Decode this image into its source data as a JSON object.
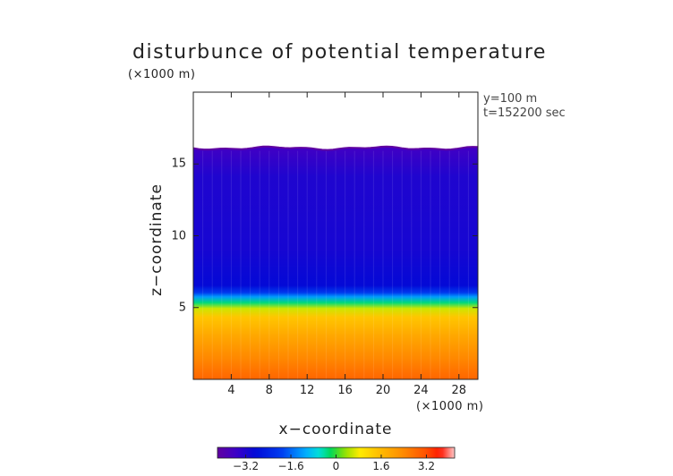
{
  "chart_data": {
    "type": "heatmap",
    "title": "disturbunce of potential temperature",
    "title_units": "(×1000 m)",
    "xlabel": "x−coordinate",
    "ylabel": "z−coordinate",
    "x_units": "(×1000 m)",
    "xlim": [
      0,
      30
    ],
    "ylim": [
      0,
      20
    ],
    "x_ticks": [
      4,
      8,
      12,
      16,
      20,
      24,
      28
    ],
    "y_ticks": [
      5,
      10,
      15
    ],
    "annotations": [
      "y=100 m",
      "t=152200 sec"
    ],
    "colorbar": {
      "range": [
        -4.2,
        4.2
      ],
      "ticks": [
        "−3.2",
        "−1.6",
        "0",
        "1.6",
        "3.2"
      ],
      "tick_values": [
        -3.2,
        -1.6,
        0,
        1.6,
        3.2
      ]
    },
    "field": {
      "domain_top_z": 16.1,
      "layers": [
        {
          "z": 16.0,
          "value": -3.6
        },
        {
          "z": 14.0,
          "value": -3.2
        },
        {
          "z": 9.0,
          "value": -3.1
        },
        {
          "z": 6.5,
          "value": -2.9
        },
        {
          "z": 6.0,
          "value": -2.0
        },
        {
          "z": 5.7,
          "value": -1.2
        },
        {
          "z": 5.3,
          "value": -0.3
        },
        {
          "z": 4.9,
          "value": 0.6
        },
        {
          "z": 4.3,
          "value": 1.4
        },
        {
          "z": 3.0,
          "value": 1.9
        },
        {
          "z": 1.5,
          "value": 2.4
        },
        {
          "z": 0.0,
          "value": 2.9
        }
      ]
    }
  }
}
